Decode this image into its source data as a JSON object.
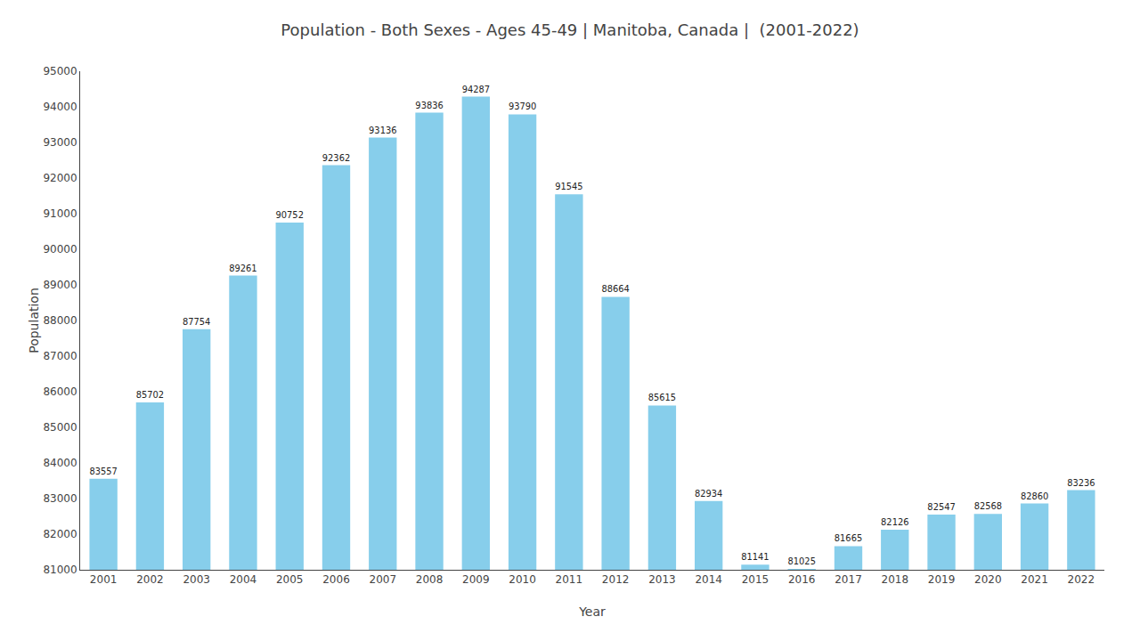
{
  "chart_data": {
    "type": "bar",
    "title": "Population - Both Sexes - Ages 45-49 | Manitoba, Canada |  (2001-2022)",
    "xlabel": "Year",
    "ylabel": "Population",
    "categories": [
      "2001",
      "2002",
      "2003",
      "2004",
      "2005",
      "2006",
      "2007",
      "2008",
      "2009",
      "2010",
      "2011",
      "2012",
      "2013",
      "2014",
      "2015",
      "2016",
      "2017",
      "2018",
      "2019",
      "2020",
      "2021",
      "2022"
    ],
    "values": [
      83557,
      85702,
      87754,
      89261,
      90752,
      92362,
      93136,
      93836,
      94287,
      93790,
      91545,
      88664,
      85615,
      82934,
      81141,
      81025,
      81665,
      82126,
      82547,
      82568,
      82860,
      83236
    ],
    "color": "#87ceeb",
    "ylim": [
      81000,
      95000
    ],
    "yticks": [
      81000,
      82000,
      83000,
      84000,
      85000,
      86000,
      87000,
      88000,
      89000,
      90000,
      91000,
      92000,
      93000,
      94000,
      95000
    ],
    "grid": false,
    "data_labels": true
  }
}
